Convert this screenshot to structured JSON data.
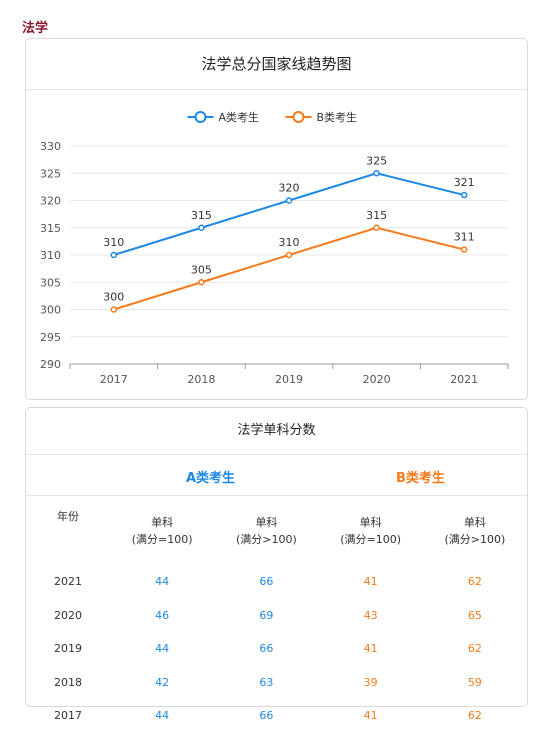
{
  "page_label": "法学",
  "chart_data": {
    "type": "line",
    "title": "法学总分国家线趋势图",
    "categories": [
      "2017",
      "2018",
      "2019",
      "2020",
      "2021"
    ],
    "series": [
      {
        "name": "A类考生",
        "color": "#1e88e5",
        "values": [
          310,
          315,
          320,
          325,
          321
        ]
      },
      {
        "name": "B类考生",
        "color": "#f57a1c",
        "values": [
          300,
          305,
          310,
          315,
          311
        ]
      }
    ],
    "yticks": [
      290,
      295,
      300,
      305,
      310,
      315,
      320,
      325,
      330
    ],
    "ylim": [
      290,
      330
    ],
    "grid": true,
    "legend_position": "top-center"
  },
  "table": {
    "title": "法学单科分数",
    "group_a": "A类考生",
    "group_b": "B类考生",
    "year_header": "年份",
    "col_headers": [
      {
        "line1": "单科",
        "line2": "(满分=100)"
      },
      {
        "line1": "单科",
        "line2": "(满分>100)"
      },
      {
        "line1": "单科",
        "line2": "(满分=100)"
      },
      {
        "line1": "单科",
        "line2": "(满分>100)"
      }
    ],
    "rows": [
      {
        "year": "2021",
        "a1": "44",
        "a2": "66",
        "b1": "41",
        "b2": "62"
      },
      {
        "year": "2020",
        "a1": "46",
        "a2": "69",
        "b1": "43",
        "b2": "65"
      },
      {
        "year": "2019",
        "a1": "44",
        "a2": "66",
        "b1": "41",
        "b2": "62"
      },
      {
        "year": "2018",
        "a1": "42",
        "a2": "63",
        "b1": "39",
        "b2": "59"
      },
      {
        "year": "2017",
        "a1": "44",
        "a2": "66",
        "b1": "41",
        "b2": "62"
      }
    ]
  }
}
